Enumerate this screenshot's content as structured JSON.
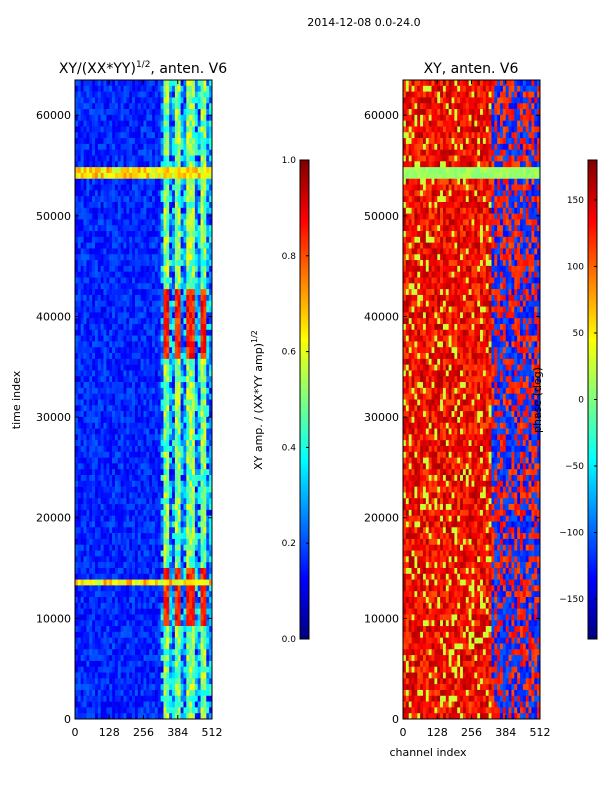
{
  "page_title": "2014-12-08 0.0-24.0",
  "chart_data": [
    {
      "type": "heatmap",
      "title": "XY/(XX*YY)^(1/2), anten. V6",
      "title_main": "XY/(XX*YY)",
      "title_sup": "1/2",
      "title_tail": ", anten. V6",
      "xlabel": "",
      "ylabel": "time index",
      "x_range": [
        0,
        512
      ],
      "y_range": [
        0,
        63500
      ],
      "x_ticks": [
        0,
        128,
        256,
        384,
        512
      ],
      "x_tick_labels": [
        "0",
        "128",
        "256",
        "384",
        "512"
      ],
      "y_ticks": [
        0,
        10000,
        20000,
        30000,
        40000,
        50000,
        60000
      ],
      "y_tick_labels": [
        "0",
        "10000",
        "20000",
        "30000",
        "40000",
        "50000",
        "60000"
      ],
      "colorbar": {
        "label_main": "XY amp. / (XX*YY amp)",
        "label_sup": "1/2",
        "range": [
          0.0,
          1.0
        ],
        "ticks": [
          0.0,
          0.2,
          0.4,
          0.6,
          0.8,
          1.0
        ],
        "tick_labels": [
          "0.0",
          "0.2",
          "0.4",
          "0.6",
          "0.8",
          "1.0"
        ]
      },
      "features": {
        "channel_band_start": 320,
        "column_peaks": [
          340,
          384,
          435,
          480
        ],
        "high_blocks": [
          [
            9500,
            15000
          ],
          [
            36000,
            42500
          ]
        ],
        "high_level": 0.92,
        "mid_level": 0.5,
        "low_level": 0.1,
        "gaps": [
          [
            53800,
            54800
          ],
          [
            36300,
            36500
          ],
          [
            13300,
            13700
          ]
        ]
      }
    },
    {
      "type": "heatmap",
      "title": "XY, anten. V6",
      "xlabel": "channel index",
      "ylabel": "",
      "x_range": [
        0,
        512
      ],
      "y_range": [
        0,
        63500
      ],
      "x_ticks": [
        0,
        128,
        256,
        384,
        512
      ],
      "x_tick_labels": [
        "0",
        "128",
        "256",
        "384",
        "512"
      ],
      "y_ticks": [
        0,
        10000,
        20000,
        30000,
        40000,
        50000,
        60000
      ],
      "y_tick_labels": [
        "0",
        "10000",
        "20000",
        "30000",
        "40000",
        "50000",
        "60000"
      ],
      "colorbar": {
        "label": "phase (deg)",
        "range": [
          -180,
          180
        ],
        "ticks": [
          150,
          100,
          50,
          0,
          -50,
          -100,
          -150
        ],
        "tick_labels": [
          "150",
          "100",
          "50",
          "0",
          "−50",
          "−100",
          "−150"
        ]
      },
      "features": {
        "dominant_phase_deg": 140,
        "high_channel_phase_deg": -130,
        "uniform_band": [
          53800,
          54800
        ],
        "uniform_band_phase_deg": 10
      }
    }
  ]
}
